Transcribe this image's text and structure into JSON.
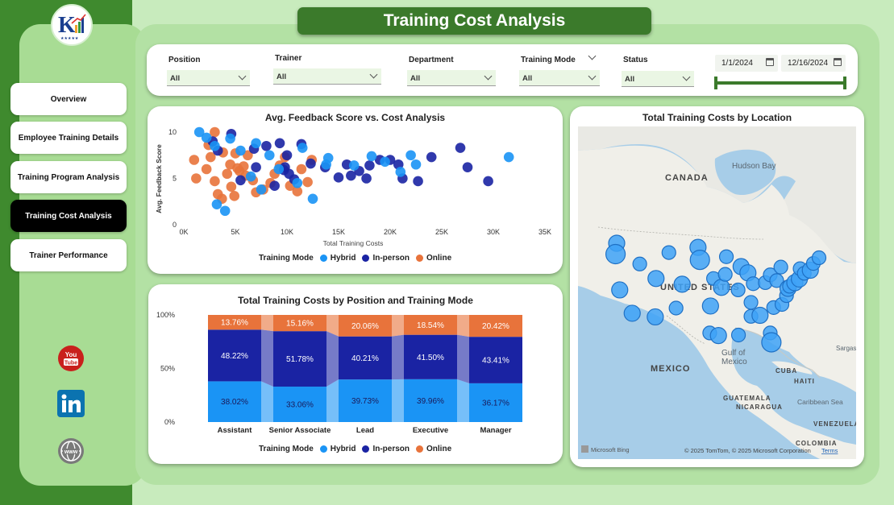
{
  "app": {
    "title": "Training Cost Analysis"
  },
  "colors": {
    "dark_green": "#3f8a2e",
    "panel_green": "#a8dc94",
    "title_green": "#3b7a2b",
    "hybrid": "#1a94f5",
    "in_person": "#1a23a3",
    "online": "#e8733b"
  },
  "sidebar": {
    "logo": "kk-logo",
    "nav": [
      {
        "label": "Overview",
        "active": false
      },
      {
        "label": "Employee Training Details",
        "active": false
      },
      {
        "label": "Training Program Analysis",
        "active": false
      },
      {
        "label": "Training Cost Analysis",
        "active": true
      },
      {
        "label": "Trainer Performance",
        "active": false
      }
    ],
    "social": [
      "youtube-icon",
      "linkedin-icon",
      "globe-icon"
    ]
  },
  "filters": {
    "position": {
      "label": "Position",
      "value": "All"
    },
    "trainer": {
      "label": "Trainer",
      "value": "All"
    },
    "department": {
      "label": "Department",
      "value": "All"
    },
    "training_mode": {
      "label": "Training Mode",
      "value": "All"
    },
    "status": {
      "label": "Status",
      "value": "All"
    },
    "date_start": "1/1/2024",
    "date_end": "12/16/2024"
  },
  "scatter": {
    "title": "Avg. Feedback Score vs. Cost Analysis",
    "xlabel": "Total Training Costs",
    "ylabel": "Avg. Feedback Score",
    "legend_title": "Training Mode",
    "legend": [
      "Hybrid",
      "In-person",
      "Online"
    ]
  },
  "stacked": {
    "title": "Total Training Costs by Position and Training Mode",
    "legend_title": "Training Mode",
    "legend": [
      "Hybrid",
      "In-person",
      "Online"
    ]
  },
  "map": {
    "title": "Total Training Costs by Location",
    "labels": {
      "canada": "CANADA",
      "us": "UNITED STATES",
      "mexico": "MEXICO",
      "hudson": "Hudson Bay",
      "gulf1": "Gulf of",
      "gulf2": "Mexico",
      "cuba": "CUBA",
      "haiti": "HAITI",
      "caribbean": "Caribbean Sea",
      "guatemala": "GUATEMALA",
      "nicaragua": "NICARAGUA",
      "venezuela": "VENEZUELA",
      "colombia": "COLOMBIA",
      "sargasso": "Sargas"
    },
    "bing": "Microsoft Bing",
    "copyright": "© 2025 TomTom, © 2025 Microsoft Corporation",
    "terms": "Terms"
  },
  "chart_data": [
    {
      "type": "scatter",
      "title": "Avg. Feedback Score vs. Cost Analysis",
      "xlabel": "Total Training Costs",
      "ylabel": "Avg. Feedback Score",
      "xlim": [
        0,
        35000
      ],
      "ylim": [
        0,
        10
      ],
      "x_ticks": [
        "0K",
        "5K",
        "10K",
        "15K",
        "20K",
        "25K",
        "30K",
        "35K"
      ],
      "y_ticks": [
        "0",
        "5",
        "10"
      ],
      "legend_title": "Training Mode",
      "series": [
        {
          "name": "Hybrid",
          "points": [
            [
              1500,
              10
            ],
            [
              2200,
              9.4
            ],
            [
              3000,
              8.5
            ],
            [
              4500,
              9.3
            ],
            [
              5500,
              8
            ],
            [
              7000,
              8.8
            ],
            [
              8300,
              7.5
            ],
            [
              11500,
              8.3
            ],
            [
              13800,
              6.5
            ],
            [
              14000,
              7.2
            ],
            [
              16500,
              6.4
            ],
            [
              18200,
              7.4
            ],
            [
              19500,
              6.8
            ],
            [
              21000,
              5.7
            ],
            [
              22000,
              7.5
            ],
            [
              22500,
              6.5
            ],
            [
              31500,
              7.3
            ],
            [
              3200,
              2.2
            ],
            [
              4000,
              1.5
            ],
            [
              6500,
              5.2
            ],
            [
              9200,
              6
            ],
            [
              12500,
              2.8
            ],
            [
              11000,
              4.5
            ],
            [
              7500,
              3.8
            ]
          ]
        },
        {
          "name": "In-person",
          "points": [
            [
              2800,
              9
            ],
            [
              3300,
              8
            ],
            [
              4600,
              9.8
            ],
            [
              6800,
              8.2
            ],
            [
              8000,
              8.5
            ],
            [
              9300,
              8.8
            ],
            [
              10000,
              7.5
            ],
            [
              11400,
              8.7
            ],
            [
              12300,
              6.6
            ],
            [
              15800,
              6.5
            ],
            [
              17000,
              5.8
            ],
            [
              18000,
              6.4
            ],
            [
              19000,
              7
            ],
            [
              20000,
              7
            ],
            [
              21200,
              5
            ],
            [
              22700,
              4.7
            ],
            [
              24000,
              7.3
            ],
            [
              26800,
              8.3
            ],
            [
              27500,
              6.2
            ],
            [
              29500,
              4.7
            ],
            [
              10200,
              5.5
            ],
            [
              9800,
              6.2
            ],
            [
              13700,
              6.2
            ],
            [
              15000,
              5.1
            ],
            [
              16200,
              5.3
            ],
            [
              17700,
              5
            ],
            [
              20800,
              6.5
            ],
            [
              7000,
              6.2
            ],
            [
              5500,
              4.8
            ],
            [
              8800,
              4.2
            ],
            [
              9700,
              5.9
            ],
            [
              10700,
              4.9
            ]
          ]
        },
        {
          "name": "Online",
          "points": [
            [
              1000,
              7
            ],
            [
              1200,
              5
            ],
            [
              2200,
              6
            ],
            [
              2600,
              7.3
            ],
            [
              3000,
              4.7
            ],
            [
              3300,
              3.3
            ],
            [
              4200,
              5.5
            ],
            [
              4500,
              6.5
            ],
            [
              5000,
              7.7
            ],
            [
              5400,
              5.8
            ],
            [
              5800,
              6.3
            ],
            [
              6200,
              7.5
            ],
            [
              6700,
              4.8
            ],
            [
              7000,
              3.5
            ],
            [
              7700,
              3.8
            ],
            [
              8400,
              4.5
            ],
            [
              8800,
              5.5
            ],
            [
              9300,
              6.4
            ],
            [
              9800,
              7.3
            ],
            [
              10300,
              4.2
            ],
            [
              11000,
              3.6
            ],
            [
              11400,
              6
            ],
            [
              12000,
              4.6
            ],
            [
              12400,
              7
            ],
            [
              3700,
              2.8
            ],
            [
              4600,
              4.1
            ],
            [
              4900,
              3.1
            ],
            [
              5200,
              6.1
            ],
            [
              3000,
              10
            ],
            [
              2400,
              8.6
            ],
            [
              3800,
              7.8
            ],
            [
              6000,
              5.3
            ]
          ]
        }
      ]
    },
    {
      "type": "bar",
      "stacked": "100%",
      "title": "Total Training Costs by Position and Training Mode",
      "categories": [
        "Assistant",
        "Senior Associate",
        "Lead",
        "Executive",
        "Manager"
      ],
      "y_ticks": [
        "0%",
        "50%",
        "100%"
      ],
      "series": [
        {
          "name": "Hybrid",
          "values": [
            38.02,
            33.06,
            39.73,
            39.96,
            36.17
          ],
          "labels": [
            "38.02%",
            "33.06%",
            "39.73%",
            "39.96%",
            "36.17%"
          ]
        },
        {
          "name": "In-person",
          "values": [
            48.22,
            51.78,
            40.21,
            41.5,
            43.41
          ],
          "labels": [
            "48.22%",
            "51.78%",
            "40.21%",
            "41.50%",
            "43.41%"
          ]
        },
        {
          "name": "Online",
          "values": [
            13.76,
            15.16,
            20.06,
            18.54,
            20.42
          ],
          "labels": [
            "13.76%",
            "15.16%",
            "20.06%",
            "18.54%",
            "20.42%"
          ]
        }
      ]
    },
    {
      "type": "scatter",
      "subtype": "bubble-map",
      "title": "Total Training Costs by Location",
      "points": [
        {
          "lon": -122.3,
          "lat": 47.6,
          "size": 2
        },
        {
          "lon": -122.6,
          "lat": 45.5,
          "size": 3
        },
        {
          "lon": -121.5,
          "lat": 38.6,
          "size": 2
        },
        {
          "lon": -118.2,
          "lat": 34.1,
          "size": 2
        },
        {
          "lon": -116.2,
          "lat": 43.6,
          "size": 1
        },
        {
          "lon": -111.9,
          "lat": 40.8,
          "size": 2
        },
        {
          "lon": -112.1,
          "lat": 33.4,
          "size": 2
        },
        {
          "lon": -108.5,
          "lat": 45.8,
          "size": 1
        },
        {
          "lon": -105.0,
          "lat": 39.7,
          "size": 2
        },
        {
          "lon": -106.6,
          "lat": 35.1,
          "size": 1
        },
        {
          "lon": -100.8,
          "lat": 46.8,
          "size": 2
        },
        {
          "lon": -100.3,
          "lat": 44.4,
          "size": 3
        },
        {
          "lon": -96.7,
          "lat": 40.8,
          "size": 1
        },
        {
          "lon": -97.5,
          "lat": 35.5,
          "size": 2
        },
        {
          "lon": -97.7,
          "lat": 30.3,
          "size": 1
        },
        {
          "lon": -95.4,
          "lat": 29.8,
          "size": 2
        },
        {
          "lon": -93.3,
          "lat": 45.0,
          "size": 1
        },
        {
          "lon": -94.6,
          "lat": 39.1,
          "size": 2
        },
        {
          "lon": -93.6,
          "lat": 41.6,
          "size": 1
        },
        {
          "lon": -90.2,
          "lat": 38.6,
          "size": 1
        },
        {
          "lon": -90.1,
          "lat": 29.9,
          "size": 1
        },
        {
          "lon": -89.4,
          "lat": 43.1,
          "size": 2
        },
        {
          "lon": -87.6,
          "lat": 41.9,
          "size": 2
        },
        {
          "lon": -86.2,
          "lat": 39.8,
          "size": 1
        },
        {
          "lon": -86.8,
          "lat": 36.2,
          "size": 1
        },
        {
          "lon": -86.8,
          "lat": 33.5,
          "size": 1
        },
        {
          "lon": -84.4,
          "lat": 33.7,
          "size": 2
        },
        {
          "lon": -83.0,
          "lat": 40.0,
          "size": 1
        },
        {
          "lon": -81.7,
          "lat": 41.5,
          "size": 1
        },
        {
          "lon": -80.8,
          "lat": 35.2,
          "size": 1
        },
        {
          "lon": -81.7,
          "lat": 30.3,
          "size": 1
        },
        {
          "lon": -81.4,
          "lat": 28.5,
          "size": 3
        },
        {
          "lon": -80.0,
          "lat": 40.4,
          "size": 1
        },
        {
          "lon": -78.6,
          "lat": 35.8,
          "size": 1
        },
        {
          "lon": -77.4,
          "lat": 37.5,
          "size": 1
        },
        {
          "lon": -77.0,
          "lat": 38.9,
          "size": 2
        },
        {
          "lon": -76.6,
          "lat": 39.3,
          "size": 1
        },
        {
          "lon": -75.2,
          "lat": 40.0,
          "size": 2
        },
        {
          "lon": -74.0,
          "lat": 40.7,
          "size": 2
        },
        {
          "lon": -73.8,
          "lat": 42.7,
          "size": 1
        },
        {
          "lon": -72.7,
          "lat": 41.8,
          "size": 1
        },
        {
          "lon": -71.1,
          "lat": 42.4,
          "size": 2
        },
        {
          "lon": -70.3,
          "lat": 43.7,
          "size": 1
        },
        {
          "lon": -68.8,
          "lat": 44.8,
          "size": 1
        },
        {
          "lon": -78.9,
          "lat": 43.0,
          "size": 1
        }
      ]
    }
  ]
}
